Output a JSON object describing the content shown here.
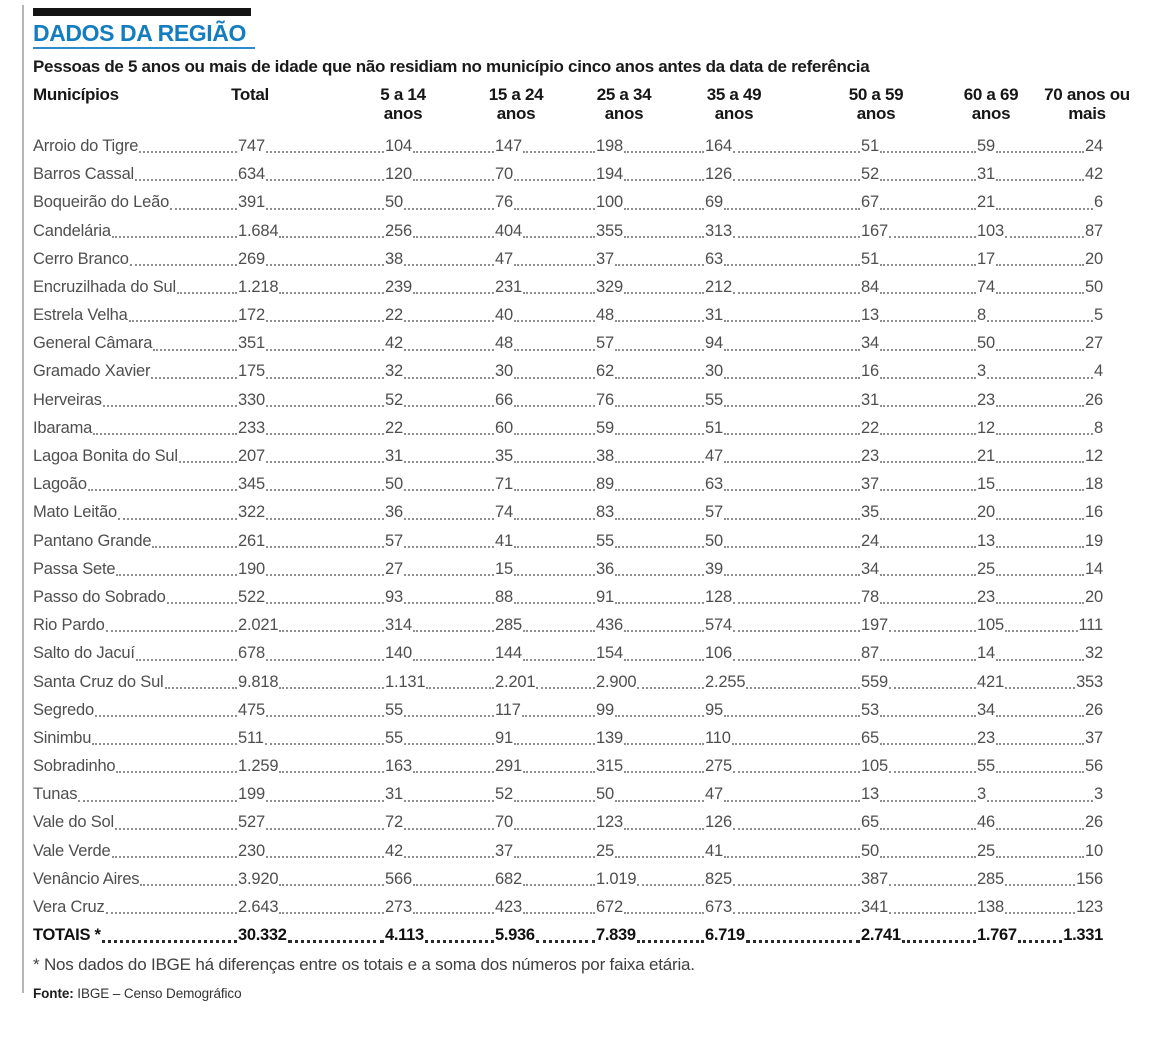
{
  "header": {
    "title": "DADOS DA REGIÃO",
    "subtitle": "Pessoas de 5 anos ou mais de idade que não residiam no município cinco anos antes da data de referência"
  },
  "table": {
    "columns": [
      {
        "label": "Municípios"
      },
      {
        "label": "Total"
      },
      {
        "label": "5 a 14",
        "label2": "anos"
      },
      {
        "label": "15 a 24",
        "label2": "anos"
      },
      {
        "label": "25 a 34",
        "label2": "anos"
      },
      {
        "label": "35 a 49",
        "label2": "anos"
      },
      {
        "label": "50 a 59",
        "label2": "anos"
      },
      {
        "label": "60 a 69",
        "label2": "anos"
      },
      {
        "label": "70 anos ou",
        "label2": "mais"
      }
    ],
    "rows": [
      {
        "name": "Arroio do Tigre",
        "values": [
          "747",
          "104",
          "147",
          "198",
          "164",
          "51",
          "59",
          "24"
        ]
      },
      {
        "name": "Barros Cassal",
        "values": [
          "634",
          "120",
          "70",
          "194",
          "126",
          "52",
          "31",
          "42"
        ]
      },
      {
        "name": "Boqueirão do Leão",
        "values": [
          "391",
          "50",
          "76",
          "100",
          "69",
          "67",
          "21",
          "6"
        ]
      },
      {
        "name": "Candelária",
        "values": [
          "1.684",
          "256",
          "404",
          "355",
          "313",
          "167",
          "103",
          "87"
        ]
      },
      {
        "name": "Cerro Branco",
        "values": [
          "269",
          "38",
          "47",
          "37",
          "63",
          "51",
          "17",
          "20"
        ]
      },
      {
        "name": "Encruzilhada do Sul",
        "values": [
          "1.218",
          "239",
          "231",
          "329",
          "212",
          "84",
          "74",
          "50"
        ]
      },
      {
        "name": "Estrela Velha",
        "values": [
          "172",
          "22",
          "40",
          "48",
          "31",
          "13",
          "8",
          "5"
        ]
      },
      {
        "name": "General Câmara",
        "values": [
          "351",
          "42",
          "48",
          "57",
          "94",
          "34",
          "50",
          "27"
        ]
      },
      {
        "name": "Gramado Xavier",
        "values": [
          "175",
          "32",
          "30",
          "62",
          "30",
          "16",
          "3",
          "4"
        ]
      },
      {
        "name": "Herveiras",
        "values": [
          "330",
          "52",
          "66",
          "76",
          "55",
          "31",
          "23",
          "26"
        ]
      },
      {
        "name": "Ibarama",
        "values": [
          "233",
          "22",
          "60",
          "59",
          "51",
          "22",
          "12",
          "8"
        ]
      },
      {
        "name": "Lagoa Bonita do Sul",
        "values": [
          "207",
          "31",
          "35",
          "38",
          "47",
          "23",
          "21",
          "12"
        ]
      },
      {
        "name": "Lagoão",
        "values": [
          "345",
          "50",
          "71",
          "89",
          "63",
          "37",
          "15",
          "18"
        ]
      },
      {
        "name": "Mato Leitão",
        "values": [
          "322",
          "36",
          "74",
          "83",
          "57",
          "35",
          "20",
          "16"
        ]
      },
      {
        "name": "Pantano Grande",
        "values": [
          "261",
          "57",
          "41",
          "55",
          "50",
          "24",
          "13",
          "19"
        ]
      },
      {
        "name": "Passa Sete",
        "values": [
          "190",
          "27",
          "15",
          "36",
          "39",
          "34",
          "25",
          "14"
        ]
      },
      {
        "name": "Passo do Sobrado",
        "values": [
          "522",
          "93",
          "88",
          "91",
          "128",
          "78",
          "23",
          "20"
        ]
      },
      {
        "name": "Rio Pardo",
        "values": [
          "2.021",
          "314",
          "285",
          "436",
          "574",
          "197",
          "105",
          "111"
        ]
      },
      {
        "name": "Salto do Jacuí",
        "values": [
          "678",
          "140",
          "144",
          "154",
          "106",
          "87",
          "14",
          "32"
        ]
      },
      {
        "name": "Santa Cruz do Sul",
        "values": [
          "9.818",
          "1.131",
          "2.201",
          "2.900",
          "2.255",
          "559",
          "421",
          "353"
        ]
      },
      {
        "name": "Segredo",
        "values": [
          "475",
          "55",
          "117",
          "99",
          "95",
          "53",
          "34",
          "26"
        ]
      },
      {
        "name": "Sinimbu",
        "values": [
          "511",
          "55",
          "91",
          "139",
          "110",
          "65",
          "23",
          "37"
        ]
      },
      {
        "name": "Sobradinho",
        "values": [
          "1.259",
          "163",
          "291",
          "315",
          "275",
          "105",
          "55",
          "56"
        ]
      },
      {
        "name": "Tunas",
        "values": [
          "199",
          "31",
          "52",
          "50",
          "47",
          "13",
          "3",
          "3"
        ]
      },
      {
        "name": "Vale do Sol",
        "values": [
          "527",
          "72",
          "70",
          "123",
          "126",
          "65",
          "46",
          "26"
        ]
      },
      {
        "name": "Vale Verde",
        "values": [
          "230",
          "42",
          "37",
          "25",
          "41",
          "50",
          "25",
          "10"
        ]
      },
      {
        "name": "Venâncio Aires",
        "values": [
          "3.920",
          "566",
          "682",
          "1.019",
          "825",
          "387",
          "285",
          "156"
        ]
      },
      {
        "name": "Vera Cruz",
        "values": [
          "2.643",
          "273",
          "423",
          "672",
          "673",
          "341",
          "138",
          "123"
        ]
      }
    ],
    "totals": {
      "label": "TOTAIS *",
      "values": [
        "30.332",
        "4.113",
        "5.936",
        "7.839",
        "6.719",
        "2.741",
        "1.767",
        "1.331"
      ]
    }
  },
  "footnote": "* Nos dados do IBGE há diferenças entre os totais e a soma dos números por faixa etária.",
  "source": {
    "label": "Fonte:",
    "text": "IBGE – Censo Demográfico"
  },
  "colors": {
    "accent_blue": "#137dc0",
    "bar_black": "#141414"
  }
}
